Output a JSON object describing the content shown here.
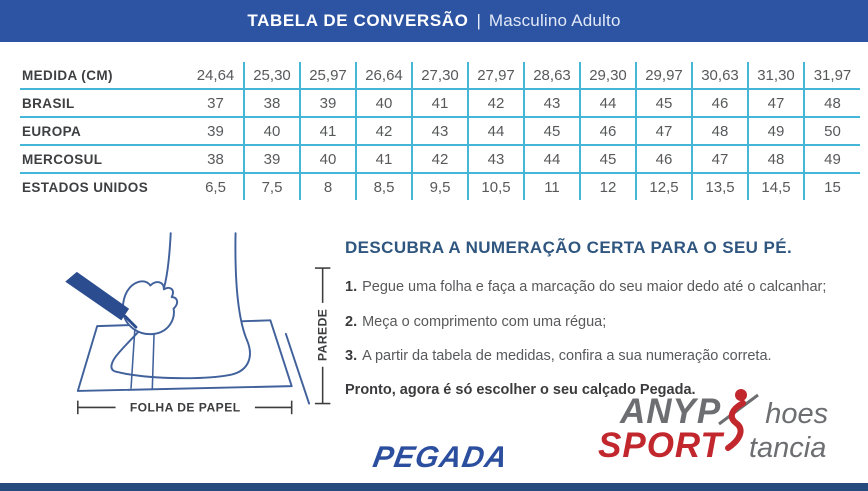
{
  "header": {
    "title": "TABELA DE CONVERSÃO",
    "separator": "|",
    "subtitle": "Masculino Adulto"
  },
  "table": {
    "rows": [
      {
        "label": "MEDIDA (CM)",
        "values": [
          "24,64",
          "25,30",
          "25,97",
          "26,64",
          "27,30",
          "27,97",
          "28,63",
          "29,30",
          "29,97",
          "30,63",
          "31,30",
          "31,97"
        ]
      },
      {
        "label": "BRASIL",
        "values": [
          "37",
          "38",
          "39",
          "40",
          "41",
          "42",
          "43",
          "44",
          "45",
          "46",
          "47",
          "48"
        ]
      },
      {
        "label": "EUROPA",
        "values": [
          "39",
          "40",
          "41",
          "42",
          "43",
          "44",
          "45",
          "46",
          "47",
          "48",
          "49",
          "50"
        ]
      },
      {
        "label": "MERCOSUL",
        "values": [
          "38",
          "39",
          "40",
          "41",
          "42",
          "43",
          "44",
          "45",
          "46",
          "47",
          "48",
          "49"
        ]
      },
      {
        "label": "ESTADOS UNIDOS",
        "values": [
          "6,5",
          "7,5",
          "8",
          "8,5",
          "9,5",
          "10,5",
          "11",
          "12",
          "12,5",
          "13,5",
          "14,5",
          "15"
        ]
      }
    ]
  },
  "illustration": {
    "paper_label": "FOLHA DE PAPEL",
    "wall_label": "PAREDE"
  },
  "guide": {
    "heading": "DESCUBRA A NUMERAÇÃO CERTA PARA O SEU PÉ.",
    "steps": [
      {
        "num": "1.",
        "text": "Pegue uma folha e faça a marcação do seu maior dedo até o calcanhar;"
      },
      {
        "num": "2.",
        "text": "Meça o comprimento com uma régua;"
      },
      {
        "num": "3.",
        "text": "A partir da tabela de medidas, confira a sua numeração correta."
      }
    ],
    "closing": "Pronto, agora é só escolher o seu calçado Pegada."
  },
  "footer": {
    "brand": "PEGADA"
  },
  "watermark": {
    "top_left": "ANYP",
    "top_right": "hoes",
    "bottom_left": "SPORT",
    "bottom_right": "tancia"
  },
  "colors": {
    "header_bg": "#2d54a3",
    "table_line": "#45b5d8",
    "heading_blue": "#2f567f",
    "brand_blue": "#2b4e9e",
    "watermark_gray": "#6d6e71",
    "watermark_red": "#c1272d",
    "bottom_bar": "#264a7d",
    "illustration_stroke": "#40619b"
  }
}
